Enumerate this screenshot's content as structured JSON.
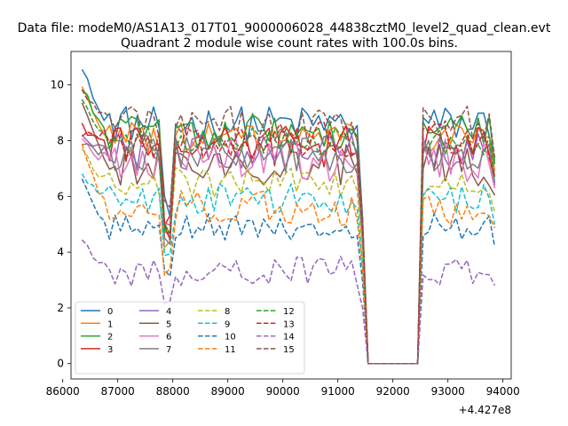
{
  "figure": {
    "suptitle": "Data file: modeM0/AS1A13_017T01_9000006028_44838cztM0_level2_quad_clean.evt",
    "title": "Quadrant 2 module wise count rates with 100.0s bins.",
    "offset_label": "+4.427e8"
  },
  "chart_data": {
    "type": "line",
    "x_offset": 442700000,
    "xlim": [
      86150,
      94150
    ],
    "ylim": [
      -0.55,
      11.2
    ],
    "xticks": [
      86000,
      87000,
      88000,
      89000,
      90000,
      91000,
      92000,
      93000,
      94000
    ],
    "yticks": [
      0,
      2,
      4,
      6,
      8,
      10
    ],
    "xtick_labels": [
      "86000",
      "87000",
      "88000",
      "89000",
      "90000",
      "91000",
      "92000",
      "93000",
      "94000"
    ],
    "ytick_labels": [
      "0",
      "2",
      "4",
      "6",
      "8",
      "10"
    ],
    "legend_position": "lower-left",
    "legend_columns": 4,
    "bins": {
      "seg1_start": 86350,
      "seg1_end": 91350,
      "gap_start": 91550,
      "gap_end": 92450,
      "seg2_start": 92450,
      "seg2_end": 93850,
      "step": 100
    },
    "series": [
      {
        "name": "0",
        "color": "#1f77b4",
        "dash": "solid",
        "level": 8.6,
        "start": 10.7,
        "noise": 0.3
      },
      {
        "name": "1",
        "color": "#ff7f0e",
        "dash": "solid",
        "level": 8.1,
        "start": 9.9,
        "noise": 0.25
      },
      {
        "name": "2",
        "color": "#2ca02c",
        "dash": "solid",
        "level": 8.3,
        "start": 9.9,
        "noise": 0.3
      },
      {
        "name": "3",
        "color": "#d62728",
        "dash": "solid",
        "level": 7.8,
        "start": 8.5,
        "noise": 0.35
      },
      {
        "name": "4",
        "color": "#9467bd",
        "dash": "solid",
        "level": 7.6,
        "start": 8.2,
        "noise": 0.3
      },
      {
        "name": "5",
        "color": "#8c564b",
        "dash": "solid",
        "level": 7.1,
        "start": 9.5,
        "noise": 0.35
      },
      {
        "name": "6",
        "color": "#e377c2",
        "dash": "solid",
        "level": 7.3,
        "start": 8.0,
        "noise": 0.35
      },
      {
        "name": "7",
        "color": "#7f7f7f",
        "dash": "solid",
        "level": 7.5,
        "start": 7.9,
        "noise": 0.3
      },
      {
        "name": "8",
        "color": "#bcbd22",
        "dash": "dashed",
        "level": 6.5,
        "start": 7.6,
        "noise": 0.25
      },
      {
        "name": "9",
        "color": "#17becf",
        "dash": "dashed",
        "level": 5.9,
        "start": 6.8,
        "noise": 0.25
      },
      {
        "name": "10",
        "color": "#1f77b4",
        "dash": "dashed",
        "level": 4.9,
        "start": 6.7,
        "noise": 0.22
      },
      {
        "name": "11",
        "color": "#ff7f0e",
        "dash": "dashed",
        "level": 5.6,
        "start": 7.8,
        "noise": 0.3
      },
      {
        "name": "12",
        "color": "#2ca02c",
        "dash": "dashed",
        "level": 8.0,
        "start": 9.5,
        "noise": 0.25
      },
      {
        "name": "13",
        "color": "#d62728",
        "dash": "dashed",
        "level": 8.0,
        "start": 8.3,
        "noise": 0.3
      },
      {
        "name": "14",
        "color": "#9467bd",
        "dash": "dashed",
        "level": 3.3,
        "start": 4.4,
        "noise": 0.25
      },
      {
        "name": "15",
        "color": "#8c564b",
        "dash": "dashed",
        "level": 8.6,
        "start": 9.9,
        "noise": 0.3
      }
    ]
  }
}
